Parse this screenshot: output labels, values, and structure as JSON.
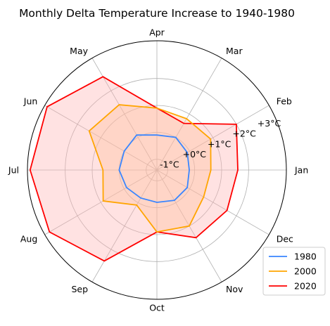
{
  "chart_data": {
    "type": "radar",
    "title": "Monthly Delta Temperature Increase to 1940-1980",
    "categories": [
      "Jan",
      "Feb",
      "Mar",
      "Apr",
      "May",
      "Jun",
      "Jul",
      "Aug",
      "Sep",
      "Oct",
      "Nov",
      "Dec"
    ],
    "radial_ticks": [
      "-1°C",
      "+0°C",
      "+1°C",
      "+2°C",
      "+3°C"
    ],
    "rlim": [
      -1.4,
      3.4
    ],
    "series": [
      {
        "name": "1980",
        "color": "#3a86ff",
        "fill": false,
        "values": [
          -0.2,
          -0.1,
          0.0,
          -0.1,
          0.1,
          0.0,
          0.0,
          -0.1,
          -0.2,
          -0.2,
          -0.1,
          -0.1
        ]
      },
      {
        "name": "2000",
        "color": "#ffa500",
        "fill": true,
        "fill_color": "#ffc09a",
        "values": [
          0.6,
          0.9,
          0.8,
          0.9,
          1.4,
          1.5,
          0.6,
          0.9,
          0.1,
          0.9,
          1.0,
          0.6
        ]
      },
      {
        "name": "2020",
        "color": "#ff0000",
        "fill": true,
        "fill_color": "#ffb3b3",
        "values": [
          1.6,
          2.0,
          0.6,
          0.9,
          2.6,
          3.3,
          3.3,
          3.2,
          2.5,
          0.9,
          1.5,
          1.6
        ]
      }
    ],
    "grid": true,
    "legend": "bottom-right"
  }
}
